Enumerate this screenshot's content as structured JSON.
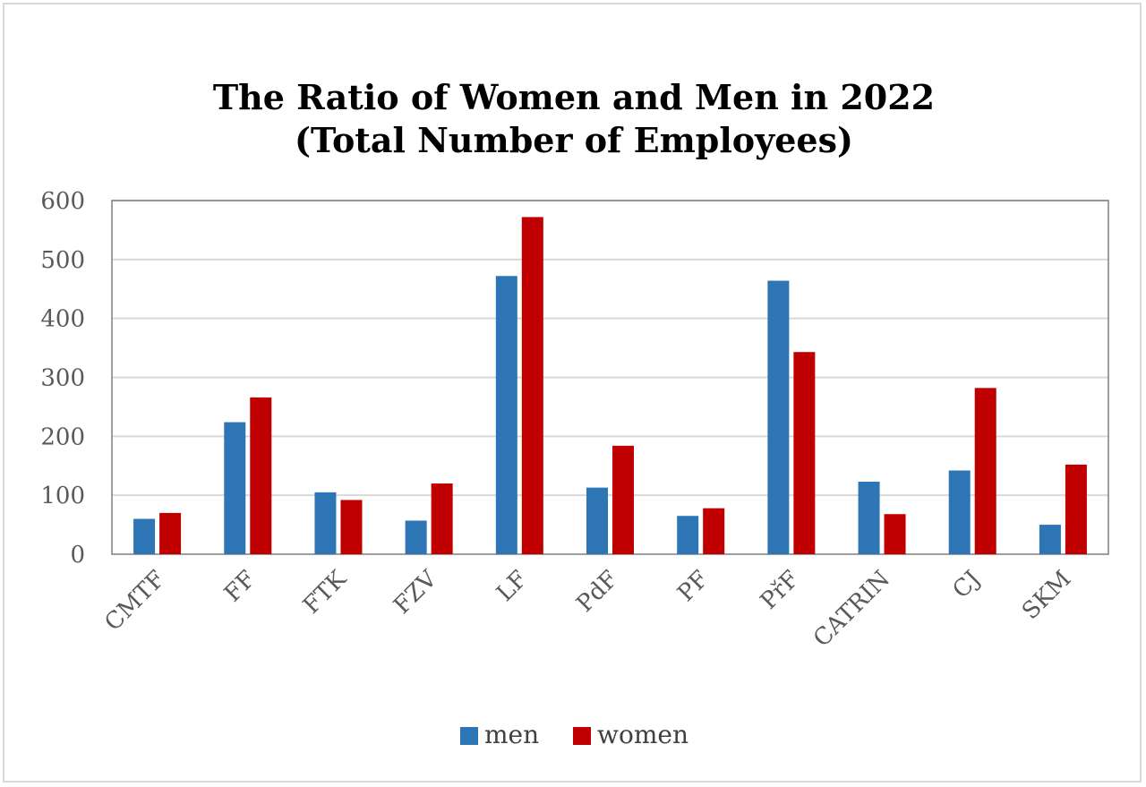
{
  "chart_data": {
    "type": "bar",
    "title_lines": [
      "The Ratio of Women and Men in 2022",
      "(Total Number of Employees)"
    ],
    "categories": [
      "CMTF",
      "FF",
      "FTK",
      "FZV",
      "LF",
      "PdF",
      "PF",
      "PřF",
      "CATRIN",
      "CJ",
      "SKM"
    ],
    "series": [
      {
        "name": "men",
        "color": "#2E75B6",
        "values": [
          60,
          224,
          105,
          57,
          472,
          113,
          65,
          464,
          123,
          142,
          50
        ]
      },
      {
        "name": "women",
        "color": "#C00000",
        "values": [
          70,
          266,
          92,
          120,
          572,
          184,
          78,
          343,
          68,
          282,
          152
        ]
      }
    ],
    "y_ticks": [
      0,
      100,
      200,
      300,
      400,
      500,
      600
    ],
    "ylim": [
      0,
      600
    ],
    "grid": true,
    "legend_position": "bottom-center",
    "category_label_rotation": "45°"
  }
}
